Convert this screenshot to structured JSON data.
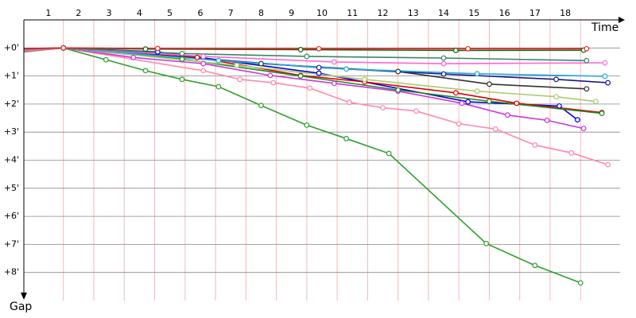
{
  "chart_data": {
    "type": "line",
    "x_label": "Time",
    "y_label": "Gap",
    "xlim": [
      -0.3,
      19.3
    ],
    "ylim": [
      -1,
      9
    ],
    "y_inverted": true,
    "xticks": [
      1,
      2,
      3,
      4,
      5,
      6,
      7,
      8,
      9,
      10,
      11,
      12,
      13,
      14,
      15,
      16,
      17,
      18
    ],
    "yticks": [
      {
        "value": 0,
        "label": "+0'"
      },
      {
        "value": 1,
        "label": "+1'"
      },
      {
        "value": 2,
        "label": "+2'"
      },
      {
        "value": 3,
        "label": "+3'"
      },
      {
        "value": 4,
        "label": "+4'"
      },
      {
        "value": 5,
        "label": "+5'"
      },
      {
        "value": 6,
        "label": "+6'"
      },
      {
        "value": 7,
        "label": "+7'"
      },
      {
        "value": 8,
        "label": "+8'"
      }
    ],
    "grid": true,
    "series": [
      {
        "color": "#2ca02c",
        "x": [
          -0.3,
          1,
          2.4,
          3.7,
          4.9,
          6.1,
          7.5,
          9.0,
          10.3,
          11.7,
          14.9,
          16.5,
          18.0
        ],
        "values": [
          0.1,
          0,
          0.42,
          0.81,
          1.12,
          1.38,
          2.05,
          2.75,
          3.23,
          3.76,
          6.97,
          7.75,
          8.37
        ]
      },
      {
        "color": "#ff88aa",
        "x": [
          -0.3,
          1,
          5.6,
          6.8,
          7.9,
          9.1,
          10.4,
          11.5,
          12.6,
          14.0,
          15.2,
          16.5,
          17.7,
          18.9
        ],
        "values": [
          0.15,
          0,
          0.81,
          1.12,
          1.24,
          1.43,
          1.94,
          2.13,
          2.25,
          2.7,
          2.89,
          3.46,
          3.74,
          4.16
        ]
      },
      {
        "color": "#cc33dd",
        "x": [
          -0.3,
          1,
          3.3,
          5.6,
          7.8,
          9.9,
          12.0,
          14.1,
          15.6,
          16.9,
          18.1
        ],
        "values": [
          0.1,
          0,
          0.34,
          0.56,
          0.98,
          1.26,
          1.54,
          1.97,
          2.39,
          2.58,
          2.87
        ]
      },
      {
        "color": "#0000dd",
        "x": [
          -0.3,
          1,
          4.1,
          9.4,
          14.3,
          17.3,
          17.9
        ],
        "values": [
          0.05,
          0,
          0.14,
          0.9,
          1.92,
          2.07,
          2.56
        ]
      },
      {
        "color": "#dd0000",
        "x": [
          -0.3,
          1,
          5.4,
          8.8,
          10.9,
          13.9,
          15.9,
          18.7
        ],
        "values": [
          0.08,
          0,
          0.34,
          0.98,
          1.21,
          1.6,
          1.97,
          2.3
        ]
      },
      {
        "color": "#228822",
        "x": [
          -0.3,
          1,
          4.9,
          8.8,
          12.0,
          15.0,
          18.7
        ],
        "values": [
          0.12,
          0,
          0.4,
          1.0,
          1.5,
          1.9,
          2.33
        ]
      },
      {
        "color": "#a8cc70",
        "x": [
          -0.3,
          1,
          6.7,
          10.9,
          14.6,
          17.2,
          18.5
        ],
        "values": [
          0.1,
          0,
          0.62,
          1.12,
          1.54,
          1.74,
          1.91
        ]
      },
      {
        "color": "#333333",
        "x": [
          -0.3,
          1,
          7.5,
          12.0,
          15.0,
          18.2
        ],
        "values": [
          0.06,
          0,
          0.56,
          0.84,
          1.29,
          1.46
        ]
      },
      {
        "color": "#1a1a88",
        "x": [
          -0.3,
          1,
          9.4,
          13.5,
          17.2,
          18.9
        ],
        "values": [
          0.05,
          0,
          0.7,
          0.93,
          1.12,
          1.24
        ]
      },
      {
        "color": "#22aadd",
        "x": [
          -0.3,
          1,
          6.1,
          10.3,
          14.6,
          18.8
        ],
        "values": [
          0.07,
          0,
          0.45,
          0.75,
          0.92,
          1.01
        ]
      },
      {
        "color": "#ff66dd",
        "x": [
          -0.3,
          1,
          5.6,
          9.9,
          13.5,
          18.8
        ],
        "values": [
          0.09,
          0,
          0.3,
          0.5,
          0.56,
          0.53
        ]
      },
      {
        "color": "#338866",
        "x": [
          -0.3,
          1,
          4.9,
          9.0,
          13.5,
          18.2
        ],
        "values": [
          0.04,
          0,
          0.2,
          0.3,
          0.36,
          0.45
        ]
      },
      {
        "color": "#116611",
        "x": [
          -0.3,
          1,
          3.7,
          8.8,
          13.9,
          18.1
        ],
        "values": [
          0.03,
          0,
          0.04,
          0.06,
          0.09,
          0.08
        ]
      },
      {
        "color": "#ee2222",
        "x": [
          -0.3,
          1,
          4.1,
          9.4,
          14.3,
          18.2
        ],
        "values": [
          0.02,
          0,
          0.02,
          0.03,
          0.03,
          0.03
        ]
      }
    ]
  }
}
